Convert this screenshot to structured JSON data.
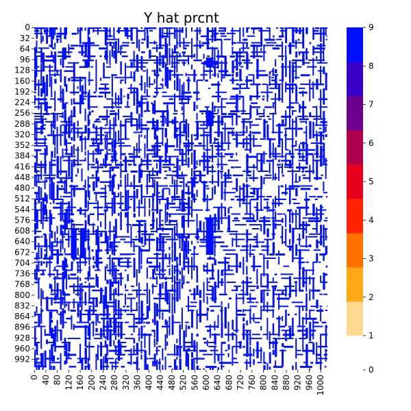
{
  "chart_data": {
    "type": "heatmap",
    "title": "Y hat prcnt",
    "matrix_size": 1024,
    "x_tick_labels": [
      "0",
      "40",
      "80",
      "120",
      "160",
      "200",
      "240",
      "280",
      "320",
      "360",
      "400",
      "440",
      "480",
      "520",
      "560",
      "600",
      "640",
      "680",
      "720",
      "760",
      "800",
      "840",
      "880",
      "920",
      "960",
      "1000"
    ],
    "x_tick_step": 40,
    "y_tick_labels": [
      "0",
      "32",
      "64",
      "96",
      "128",
      "160",
      "192",
      "224",
      "256",
      "288",
      "320",
      "352",
      "384",
      "416",
      "448",
      "480",
      "512",
      "544",
      "576",
      "608",
      "640",
      "672",
      "704",
      "736",
      "768",
      "800",
      "832",
      "864",
      "896",
      "928",
      "960",
      "992"
    ],
    "y_tick_step": 32,
    "dominant_value": 9,
    "background_value": 0,
    "sample_active_columns": [
      0,
      6,
      13,
      22,
      28,
      35,
      41,
      52,
      58,
      65,
      70,
      78,
      90,
      97,
      104,
      110,
      118,
      128,
      136,
      150,
      158,
      164,
      176,
      186,
      190,
      204,
      214,
      220,
      230,
      240,
      246,
      252,
      262,
      270,
      276,
      282,
      292,
      300,
      316,
      324,
      336,
      346,
      356,
      364,
      372,
      384,
      392,
      400,
      412,
      418,
      426,
      436,
      446,
      456,
      462,
      470,
      480,
      488,
      496,
      506,
      514,
      520,
      528,
      536,
      548,
      556,
      566,
      576,
      590,
      602,
      612,
      620,
      628,
      640,
      652,
      664,
      676,
      690,
      704,
      716,
      728,
      740,
      752,
      764,
      776,
      790,
      800,
      812,
      820,
      832,
      840,
      852,
      864,
      876,
      890,
      900,
      912,
      924,
      936,
      948,
      960,
      972,
      984,
      998,
      1008,
      1016
    ],
    "sample_active_rows": [
      0,
      8,
      16,
      24,
      34,
      44,
      52,
      60,
      72,
      84,
      96,
      104,
      116,
      128,
      140,
      148,
      156,
      168,
      180,
      192,
      204,
      212,
      224,
      236,
      248,
      256,
      264,
      272,
      280,
      290,
      300,
      312,
      320,
      332,
      344,
      352,
      364,
      376,
      384,
      396,
      408,
      416,
      428,
      440,
      448,
      460,
      472,
      480,
      492,
      504,
      512,
      524,
      536,
      544,
      556,
      568,
      576,
      588,
      600,
      608,
      616,
      624,
      632,
      640,
      652,
      664,
      676,
      688,
      700,
      712,
      724,
      736,
      748,
      760,
      772,
      784,
      796,
      808,
      820,
      832,
      844,
      856,
      868,
      880,
      892,
      904,
      916,
      928,
      940,
      952,
      964,
      976,
      988,
      1000,
      1012
    ],
    "colorbar": {
      "ticks": [
        "0",
        "1",
        "2",
        "3",
        "4",
        "5",
        "6",
        "7",
        "8",
        "9"
      ],
      "colors": [
        "#ffffff",
        "#ffd890",
        "#ffa815",
        "#ff7000",
        "#ff2400",
        "#e6001a",
        "#b0004e",
        "#6e0090",
        "#3a00cc",
        "#0010ff"
      ]
    }
  }
}
